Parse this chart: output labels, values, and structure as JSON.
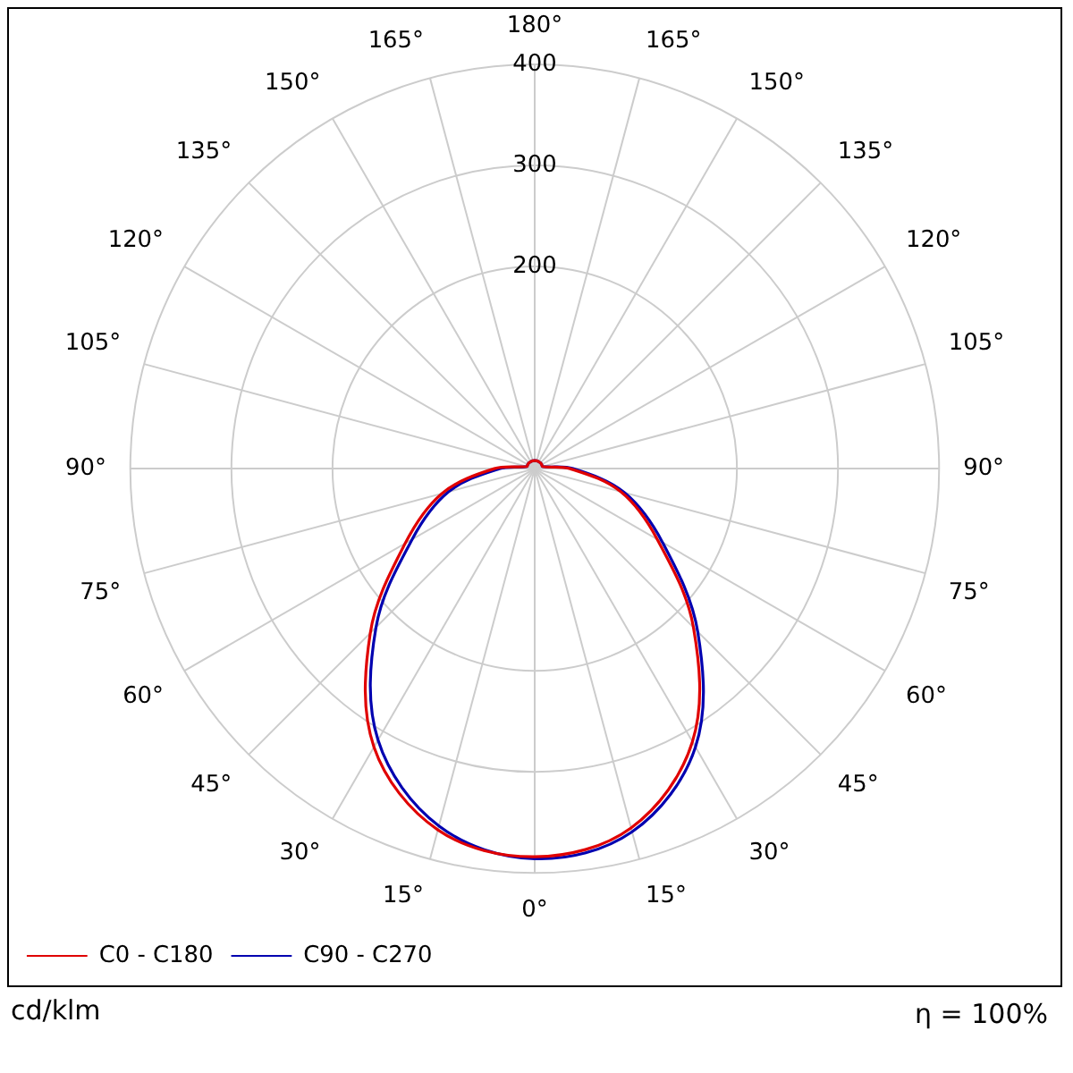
{
  "chart_data": {
    "type": "radar",
    "ylabel": "cd/klm",
    "annotations": [
      "η = 100%"
    ],
    "categories": [
      "180°",
      "165°",
      "150°",
      "135°",
      "120°",
      "105°",
      "90°",
      "75°",
      "60°",
      "45°",
      "30°",
      "15°",
      "0°",
      "15°",
      "30°",
      "45°",
      "60°",
      "75°",
      "90°",
      "105°",
      "120°",
      "135°",
      "150°",
      "165°"
    ],
    "series": [
      {
        "name": "C0 - C180",
        "color": "#e00000",
        "values": [
          8,
          8,
          8,
          8,
          8,
          8,
          35,
          88,
          140,
          222,
          312,
          368,
          384,
          370,
          318,
          230,
          148,
          95,
          40,
          8,
          8,
          8,
          8,
          8
        ]
      },
      {
        "name": "C90 - C270",
        "color": "#0000b0",
        "values": [
          8,
          8,
          8,
          8,
          8,
          8,
          38,
          92,
          146,
          228,
          318,
          372,
          386,
          366,
          310,
          222,
          140,
          88,
          35,
          8,
          8,
          8,
          8,
          8
        ]
      }
    ],
    "ylim": [
      0,
      400
    ],
    "yticks": [
      200,
      300,
      400
    ],
    "grid": true,
    "legend": "bottom left",
    "marker": "none",
    "line_style": "solid"
  }
}
